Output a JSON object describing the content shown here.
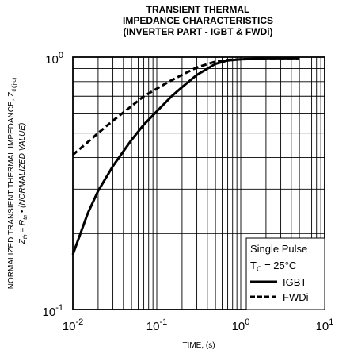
{
  "title_lines": [
    "TRANSIENT THERMAL",
    "IMPEDANCE CHARACTERISTICS",
    "(INVERTER PART - IGBT & FWDi)"
  ],
  "chart_data": {
    "type": "line",
    "xscale": "log",
    "yscale": "log",
    "xlim": [
      0.01,
      10
    ],
    "ylim": [
      0.1,
      1
    ],
    "x_ticks": [
      {
        "base": "10",
        "exp": "-2"
      },
      {
        "base": "10",
        "exp": "-1"
      },
      {
        "base": "10",
        "exp": "0"
      },
      {
        "base": "10",
        "exp": "1"
      }
    ],
    "y_ticks": [
      {
        "base": "10",
        "exp": "-1"
      },
      {
        "base": "10",
        "exp": "0"
      }
    ],
    "xlabel": "TIME, (s)",
    "ylabel_line1": {
      "text": "NORMALIZED TRANSIENT THERMAL IMPEDANCE, Z",
      "sub": "th(j-c)"
    },
    "ylabel_line2": {
      "pre": "Z",
      "pre_sub": "th",
      "mid": " = R",
      "mid_sub": "th",
      "post": " • (NORMALIZED VALUE)"
    },
    "grid": true,
    "legend": {
      "position": "bottom-right",
      "heading": "Single Pulse",
      "condition": {
        "pre": "T",
        "sub": "C",
        "post": " = 25°C"
      }
    },
    "series": [
      {
        "name": "IGBT",
        "style": "solid",
        "x": [
          0.01,
          0.015,
          0.02,
          0.03,
          0.05,
          0.07,
          0.1,
          0.15,
          0.2,
          0.3,
          0.5,
          0.7,
          1,
          1.5,
          2,
          3,
          5
        ],
        "y": [
          0.165,
          0.24,
          0.295,
          0.37,
          0.47,
          0.54,
          0.61,
          0.7,
          0.76,
          0.85,
          0.94,
          0.97,
          0.98,
          0.985,
          0.99,
          0.99,
          0.99
        ]
      },
      {
        "name": "FWDi",
        "style": "dashed",
        "x": [
          0.01,
          0.015,
          0.02,
          0.03,
          0.05,
          0.07,
          0.1,
          0.15,
          0.2,
          0.3,
          0.5,
          0.7,
          1,
          1.5,
          2,
          3,
          5
        ],
        "y": [
          0.41,
          0.46,
          0.5,
          0.56,
          0.64,
          0.7,
          0.75,
          0.81,
          0.85,
          0.91,
          0.96,
          0.975,
          0.98,
          0.985,
          0.99,
          0.99,
          0.99
        ]
      }
    ]
  }
}
